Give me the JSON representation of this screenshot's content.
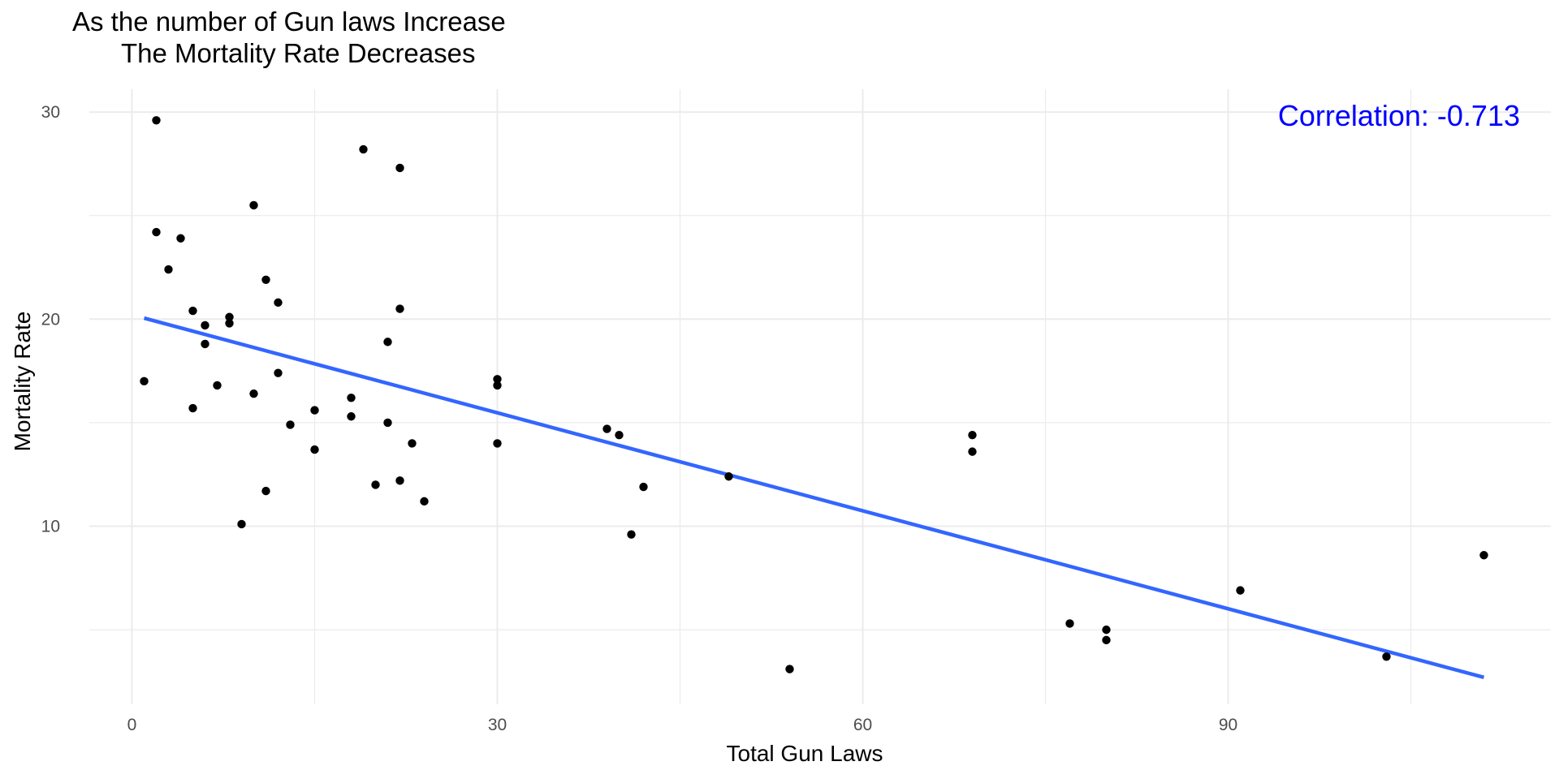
{
  "chart_data": {
    "type": "scatter",
    "title_lines": [
      "As the number of Gun laws Increase",
      "The Mortality Rate Decreases"
    ],
    "xlabel": "Total Gun Laws",
    "ylabel": "Mortality Rate",
    "annotation": "Correlation: -0.713",
    "xlim": [
      -3.5,
      116.5
    ],
    "ylim": [
      1.4,
      31.1
    ],
    "x_ticks": [
      0,
      30,
      60,
      90
    ],
    "y_ticks": [
      10,
      20,
      30
    ],
    "x_minor_ticks": [
      15,
      45,
      75,
      105
    ],
    "y_minor_ticks": [
      5,
      15,
      25
    ],
    "grid": true,
    "legend": "none",
    "colors": {
      "points": "#000000",
      "trend_line": "#3366FF",
      "annotation": "#0000FF",
      "grid": "#EBEBEB",
      "text": "#000000",
      "tick_text": "#4D4D4D"
    },
    "points": [
      {
        "x": 1,
        "y": 17.0
      },
      {
        "x": 2,
        "y": 29.6
      },
      {
        "x": 2,
        "y": 24.2
      },
      {
        "x": 3,
        "y": 22.4
      },
      {
        "x": 4,
        "y": 23.9
      },
      {
        "x": 5,
        "y": 20.4
      },
      {
        "x": 5,
        "y": 15.7
      },
      {
        "x": 6,
        "y": 19.7
      },
      {
        "x": 6,
        "y": 18.8
      },
      {
        "x": 7,
        "y": 16.8
      },
      {
        "x": 8,
        "y": 20.1
      },
      {
        "x": 8,
        "y": 19.8
      },
      {
        "x": 9,
        "y": 10.1
      },
      {
        "x": 10,
        "y": 25.5
      },
      {
        "x": 10,
        "y": 16.4
      },
      {
        "x": 11,
        "y": 21.9
      },
      {
        "x": 11,
        "y": 11.7
      },
      {
        "x": 12,
        "y": 20.8
      },
      {
        "x": 12,
        "y": 17.4
      },
      {
        "x": 13,
        "y": 14.9
      },
      {
        "x": 15,
        "y": 15.6
      },
      {
        "x": 15,
        "y": 13.7
      },
      {
        "x": 18,
        "y": 16.2
      },
      {
        "x": 18,
        "y": 15.3
      },
      {
        "x": 19,
        "y": 28.2
      },
      {
        "x": 20,
        "y": 12.0
      },
      {
        "x": 21,
        "y": 18.9
      },
      {
        "x": 21,
        "y": 15.0
      },
      {
        "x": 22,
        "y": 27.3
      },
      {
        "x": 22,
        "y": 20.5
      },
      {
        "x": 22,
        "y": 12.2
      },
      {
        "x": 23,
        "y": 14.0
      },
      {
        "x": 24,
        "y": 11.2
      },
      {
        "x": 30,
        "y": 17.1
      },
      {
        "x": 30,
        "y": 16.8
      },
      {
        "x": 30,
        "y": 14.0
      },
      {
        "x": 39,
        "y": 14.7
      },
      {
        "x": 40,
        "y": 14.4
      },
      {
        "x": 41,
        "y": 9.6
      },
      {
        "x": 42,
        "y": 11.9
      },
      {
        "x": 49,
        "y": 12.4
      },
      {
        "x": 54,
        "y": 3.1
      },
      {
        "x": 69,
        "y": 14.4
      },
      {
        "x": 69,
        "y": 13.6
      },
      {
        "x": 77,
        "y": 5.3
      },
      {
        "x": 80,
        "y": 5.0
      },
      {
        "x": 80,
        "y": 4.5
      },
      {
        "x": 91,
        "y": 6.9
      },
      {
        "x": 103,
        "y": 3.7
      },
      {
        "x": 111,
        "y": 8.6
      }
    ],
    "trend_line": {
      "x1": 1,
      "y1": 20.05,
      "x2": 111,
      "y2": 2.7
    }
  }
}
